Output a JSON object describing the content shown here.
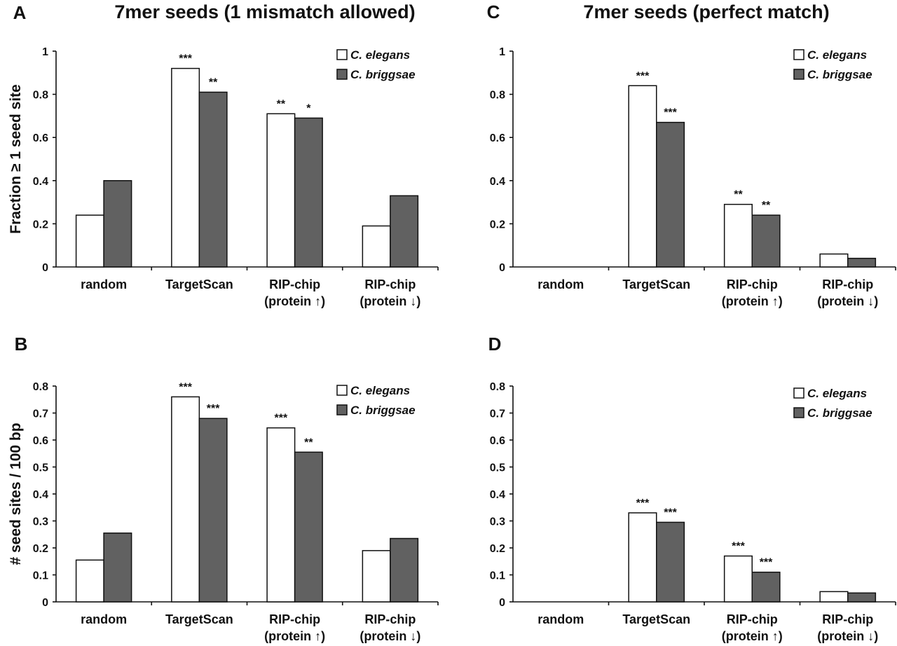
{
  "colors": {
    "c_elegans": "#ffffff",
    "c_briggsae": "#616161",
    "outline": "#111111"
  },
  "chart_data": [
    {
      "type": "bar",
      "panel": "A",
      "title": "7mer seeds (1 mismatch allowed)",
      "ylabel": "Fraction ≥ 1 seed site",
      "xlabel": "",
      "ylim": [
        0,
        1
      ],
      "yticks": [
        "0",
        "0.2",
        "0.4",
        "0.6",
        "0.8",
        "1"
      ],
      "categories": [
        [
          "random"
        ],
        [
          "TargetScan"
        ],
        [
          "RIP-chip",
          "(protein ↑)"
        ],
        [
          "RIP-chip",
          "(protein ↓)"
        ]
      ],
      "series": [
        {
          "name": "C. elegans",
          "color": "#ffffff",
          "values": [
            0.24,
            0.92,
            0.71,
            0.19
          ],
          "stars": [
            "",
            "***",
            "**",
            ""
          ]
        },
        {
          "name": "C. briggsae",
          "color": "#616161",
          "values": [
            0.4,
            0.81,
            0.69,
            0.33
          ],
          "stars": [
            "",
            "**",
            "*",
            ""
          ]
        }
      ],
      "legend": "top-right",
      "grid": false
    },
    {
      "type": "bar",
      "panel": "B",
      "title": "",
      "ylabel": "# seed sites / 100 bp",
      "xlabel": "",
      "ylim": [
        0,
        0.8
      ],
      "yticks": [
        "0",
        "0.1",
        "0.2",
        "0.3",
        "0.4",
        "0.5",
        "0.6",
        "0.7",
        "0.8"
      ],
      "categories": [
        [
          "random"
        ],
        [
          "TargetScan"
        ],
        [
          "RIP-chip",
          "(protein ↑)"
        ],
        [
          "RIP-chip",
          "(protein ↓)"
        ]
      ],
      "series": [
        {
          "name": "C. elegans",
          "color": "#ffffff",
          "values": [
            0.155,
            0.76,
            0.645,
            0.19
          ],
          "stars": [
            "",
            "***",
            "***",
            ""
          ]
        },
        {
          "name": "C. briggsae",
          "color": "#616161",
          "values": [
            0.255,
            0.68,
            0.555,
            0.235
          ],
          "stars": [
            "",
            "***",
            "**",
            ""
          ]
        }
      ],
      "legend": "top-right",
      "grid": false
    },
    {
      "type": "bar",
      "panel": "C",
      "title": "7mer seeds (perfect match)",
      "ylabel": "",
      "xlabel": "",
      "ylim": [
        0,
        1
      ],
      "yticks": [
        "0",
        "0.2",
        "0.4",
        "0.6",
        "0.8",
        "1"
      ],
      "categories": [
        [
          "random"
        ],
        [
          "TargetScan"
        ],
        [
          "RIP-chip",
          "(protein ↑)"
        ],
        [
          "RIP-chip",
          "(protein ↓)"
        ]
      ],
      "series": [
        {
          "name": "C. elegans",
          "color": "#ffffff",
          "values": [
            0,
            0.84,
            0.29,
            0.06
          ],
          "stars": [
            "",
            "***",
            "**",
            ""
          ]
        },
        {
          "name": "C. briggsae",
          "color": "#616161",
          "values": [
            0,
            0.67,
            0.24,
            0.04
          ],
          "stars": [
            "",
            "***",
            "**",
            ""
          ]
        }
      ],
      "legend": "top-right",
      "grid": false
    },
    {
      "type": "bar",
      "panel": "D",
      "title": "",
      "ylabel": "",
      "xlabel": "",
      "ylim": [
        0,
        0.8
      ],
      "yticks": [
        "0",
        "0.1",
        "0.2",
        "0.3",
        "0.4",
        "0.5",
        "0.6",
        "0.7",
        "0.8"
      ],
      "categories": [
        [
          "random"
        ],
        [
          "TargetScan"
        ],
        [
          "RIP-chip",
          "(protein ↑)"
        ],
        [
          "RIP-chip",
          "(protein ↓)"
        ]
      ],
      "series": [
        {
          "name": "C. elegans",
          "color": "#ffffff",
          "values": [
            0,
            0.33,
            0.17,
            0.038
          ],
          "stars": [
            "",
            "***",
            "***",
            ""
          ]
        },
        {
          "name": "C. briggsae",
          "color": "#616161",
          "values": [
            0,
            0.295,
            0.11,
            0.033
          ],
          "stars": [
            "",
            "***",
            "***",
            ""
          ]
        }
      ],
      "legend": "top-right",
      "grid": false
    }
  ]
}
